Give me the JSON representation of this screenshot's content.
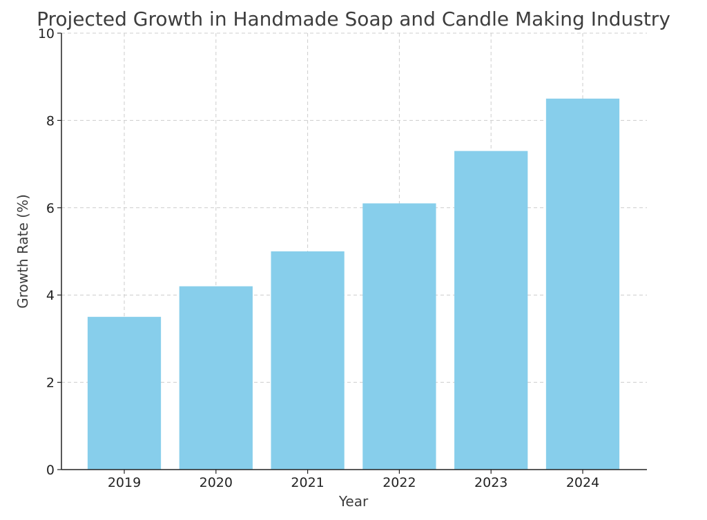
{
  "chart_data": {
    "type": "bar",
    "title": "Projected Growth in Handmade Soap and Candle Making Industry",
    "xlabel": "Year",
    "ylabel": "Growth Rate (%)",
    "categories": [
      "2019",
      "2020",
      "2021",
      "2022",
      "2023",
      "2024"
    ],
    "values": [
      3.5,
      4.2,
      5.0,
      6.1,
      7.3,
      8.5
    ],
    "ylim": [
      0,
      10
    ],
    "yticks": [
      0,
      2,
      4,
      6,
      8,
      10
    ],
    "grid": true,
    "bar_color": "#87CEEB"
  }
}
